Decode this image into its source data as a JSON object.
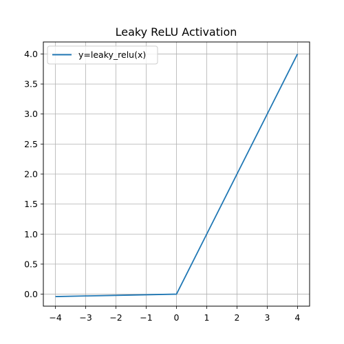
{
  "chart_data": {
    "type": "line",
    "title": "Leaky ReLU Activation",
    "xlabel": "",
    "ylabel": "",
    "xlim": [
      -4.4,
      4.4
    ],
    "ylim": [
      -0.2,
      4.2
    ],
    "grid": true,
    "legend_position": "upper-left",
    "x_ticks": [
      -4,
      -3,
      -2,
      -1,
      0,
      1,
      2,
      3,
      4
    ],
    "x_tick_labels": [
      "−4",
      "−3",
      "−2",
      "−1",
      "0",
      "1",
      "2",
      "3",
      "4"
    ],
    "y_ticks": [
      0.0,
      0.5,
      1.0,
      1.5,
      2.0,
      2.5,
      3.0,
      3.5,
      4.0
    ],
    "y_tick_labels": [
      "0.0",
      "0.5",
      "1.0",
      "1.5",
      "2.0",
      "2.5",
      "3.0",
      "3.5",
      "4.0"
    ],
    "series": [
      {
        "name": "y=leaky_relu(x)",
        "color": "#1f77b4",
        "x": [
          -4,
          -3,
          -2,
          -1,
          0,
          1,
          2,
          3,
          4
        ],
        "y": [
          -0.04,
          -0.03,
          -0.02,
          -0.01,
          0,
          1,
          2,
          3,
          4
        ]
      }
    ]
  }
}
